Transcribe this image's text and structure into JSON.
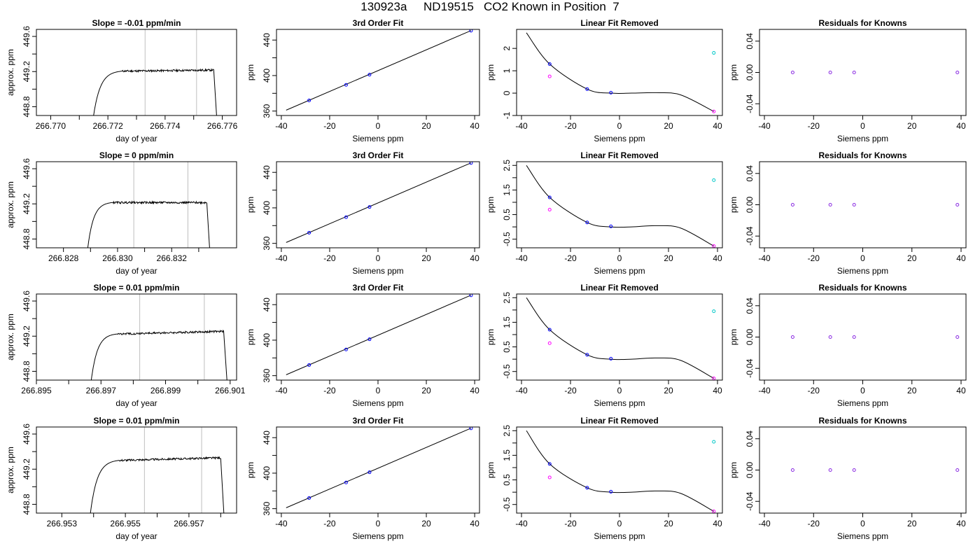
{
  "figure_title": "130923a     ND19515   CO2 Known in Position  7",
  "series_colors": {
    "trace": "#000000",
    "window_line": "#bebebe",
    "known_point": "#0000ff",
    "siemens_point": "#ff00ff",
    "removed_point": "#00c8c8",
    "residual_point": "#8a2be2"
  },
  "chart_data": [
    {
      "type": "line",
      "row": 1,
      "panel": "time-series",
      "title": "Slope =  -0.01  ppm/min",
      "xlabel": "day of year",
      "ylabel": "approx. ppm",
      "xlim": [
        266.7695,
        266.7765
      ],
      "ylim": [
        448.7,
        449.68
      ],
      "xticks": [
        "266.770",
        "266.772",
        "266.774",
        "266.776"
      ],
      "xtick_values": [
        266.77,
        266.772,
        266.774,
        266.776
      ],
      "xticks_minor": [
        266.771,
        266.773,
        266.775
      ],
      "yticks": [
        "448.8",
        "449.2",
        "449.6"
      ],
      "ytick_values": [
        448.8,
        449.2,
        449.6
      ],
      "yticks_minor": [
        449.0,
        449.4
      ],
      "window": [
        266.7733,
        266.7751
      ],
      "trace": {
        "start": 266.7715,
        "rise_end": 266.7725,
        "end": 266.7757,
        "fall_end": 266.7758,
        "baseline": 448.7,
        "plateau": 449.205,
        "drift": 0.012
      }
    },
    {
      "type": "line",
      "row": 1,
      "panel": "fit",
      "title": "3rd Order Fit",
      "xlabel": "Siemens ppm",
      "ylabel": "ppm",
      "xlim": [
        -42,
        42
      ],
      "ylim": [
        355,
        452
      ],
      "xticks": [
        "-40",
        "-20",
        "0",
        "20",
        "40"
      ],
      "xtick_values": [
        -40,
        -20,
        0,
        20,
        40
      ],
      "yticks": [
        "360",
        "400",
        "440"
      ],
      "ytick_values": [
        360,
        400,
        440
      ],
      "yticks_minor": [
        380,
        420
      ],
      "line": {
        "x": [
          -38,
          38.5
        ],
        "y": [
          361,
          450.7
        ]
      },
      "points": [
        {
          "x": -28.5,
          "y": 372
        },
        {
          "x": -13.2,
          "y": 389.5
        },
        {
          "x": -3.5,
          "y": 401
        },
        {
          "x": 38.5,
          "y": 450.5
        }
      ]
    },
    {
      "type": "line",
      "row": 1,
      "panel": "linear-removed",
      "title": "Linear Fit Removed",
      "xlabel": "Siemens ppm",
      "ylabel": "ppm",
      "xlim": [
        -42,
        42
      ],
      "ylim": [
        -1.0,
        2.85
      ],
      "xticks": [
        "-40",
        "-20",
        "0",
        "20",
        "40"
      ],
      "xtick_values": [
        -40,
        -20,
        0,
        20,
        40
      ],
      "yticks": [
        "-1",
        "0",
        "1",
        "2"
      ],
      "ytick_values": [
        -1,
        0,
        1,
        2
      ],
      "curve": {
        "x": [
          -38,
          -28.5,
          -13.2,
          -3.5,
          5,
          15,
          25,
          38.5
        ],
        "y": [
          2.7,
          1.3,
          0.18,
          0.0,
          0.0,
          0.02,
          -0.08,
          -0.82
        ]
      },
      "points": [
        {
          "x": -28.5,
          "y": 1.3,
          "kind": "known"
        },
        {
          "x": -28.5,
          "y": 0.75,
          "kind": "siemens"
        },
        {
          "x": -13.2,
          "y": 0.18,
          "kind": "known"
        },
        {
          "x": -3.5,
          "y": 0.02,
          "kind": "known"
        },
        {
          "x": 38.5,
          "y": 1.8,
          "kind": "removed"
        },
        {
          "x": 38.5,
          "y": -0.82,
          "kind": "siemens"
        }
      ]
    },
    {
      "type": "scatter",
      "row": 1,
      "panel": "residuals",
      "title": "Residuals for Knowns",
      "xlabel": "Siemens ppm",
      "ylabel": "ppm",
      "xlim": [
        -42,
        42
      ],
      "ylim": [
        -0.055,
        0.055
      ],
      "xticks": [
        "-40",
        "-20",
        "0",
        "20",
        "40"
      ],
      "xtick_values": [
        -40,
        -20,
        0,
        20,
        40
      ],
      "yticks": [
        "-0.04",
        "0.00",
        "0.04"
      ],
      "ytick_values": [
        -0.04,
        0.0,
        0.04
      ],
      "points": [
        {
          "x": -28.5,
          "y": 0
        },
        {
          "x": -13.2,
          "y": 0
        },
        {
          "x": -3.5,
          "y": 0
        },
        {
          "x": 38.5,
          "y": 0
        }
      ]
    },
    {
      "type": "line",
      "row": 2,
      "panel": "time-series",
      "title": "Slope =  0  ppm/min",
      "xlabel": "day of year",
      "ylabel": "approx. ppm",
      "xlim": [
        266.827,
        266.8344
      ],
      "ylim": [
        448.7,
        449.68
      ],
      "xticks": [
        "266.828",
        "266.830",
        "266.832"
      ],
      "xtick_values": [
        266.828,
        266.83,
        266.832
      ],
      "xticks_minor": [
        266.829,
        266.831,
        266.833
      ],
      "yticks": [
        "448.8",
        "449.2",
        "449.6"
      ],
      "ytick_values": [
        448.8,
        449.2,
        449.6
      ],
      "yticks_minor": [
        449.0,
        449.4
      ],
      "window": [
        266.8306,
        266.8326
      ],
      "trace": {
        "start": 266.8289,
        "rise_end": 266.8298,
        "end": 266.8333,
        "fall_end": 266.8334,
        "baseline": 448.7,
        "plateau": 449.215,
        "drift": 0.0
      }
    },
    {
      "type": "line",
      "row": 2,
      "panel": "fit",
      "title": "3rd Order Fit",
      "xlabel": "Siemens ppm",
      "ylabel": "ppm",
      "xlim": [
        -42,
        42
      ],
      "ylim": [
        355,
        452
      ],
      "xticks": [
        "-40",
        "-20",
        "0",
        "20",
        "40"
      ],
      "xtick_values": [
        -40,
        -20,
        0,
        20,
        40
      ],
      "yticks": [
        "360",
        "400",
        "440"
      ],
      "ytick_values": [
        360,
        400,
        440
      ],
      "yticks_minor": [
        380,
        420
      ],
      "line": {
        "x": [
          -38,
          38.5
        ],
        "y": [
          361,
          450.7
        ]
      },
      "points": [
        {
          "x": -28.5,
          "y": 372
        },
        {
          "x": -13.2,
          "y": 389.5
        },
        {
          "x": -3.5,
          "y": 401
        },
        {
          "x": 38.5,
          "y": 450.5
        }
      ]
    },
    {
      "type": "line",
      "row": 2,
      "panel": "linear-removed",
      "title": "Linear Fit Removed",
      "xlabel": "Siemens ppm",
      "ylabel": "ppm",
      "xlim": [
        -42,
        42
      ],
      "ylim": [
        -0.85,
        2.65
      ],
      "xticks": [
        "-40",
        "-20",
        "0",
        "20",
        "40"
      ],
      "xtick_values": [
        -40,
        -20,
        0,
        20,
        40
      ],
      "yticks": [
        "-0.5",
        "0.5",
        "1.5",
        "2.5"
      ],
      "ytick_values": [
        -0.5,
        0.5,
        1.5,
        2.5
      ],
      "yticks_minor": [
        0,
        1,
        2
      ],
      "curve": {
        "x": [
          -38,
          -28.5,
          -13.2,
          -3.5,
          5,
          15,
          25,
          38.5
        ],
        "y": [
          2.5,
          1.2,
          0.18,
          0.0,
          0.0,
          0.05,
          -0.05,
          -0.78
        ]
      },
      "points": [
        {
          "x": -28.5,
          "y": 1.2,
          "kind": "known"
        },
        {
          "x": -28.5,
          "y": 0.7,
          "kind": "siemens"
        },
        {
          "x": -13.2,
          "y": 0.18,
          "kind": "known"
        },
        {
          "x": -3.5,
          "y": 0.02,
          "kind": "known"
        },
        {
          "x": 38.5,
          "y": 1.9,
          "kind": "removed"
        },
        {
          "x": 38.5,
          "y": -0.78,
          "kind": "siemens"
        }
      ]
    },
    {
      "type": "scatter",
      "row": 2,
      "panel": "residuals",
      "title": "Residuals for Knowns",
      "xlabel": "Siemens ppm",
      "ylabel": "ppm",
      "xlim": [
        -42,
        42
      ],
      "ylim": [
        -0.055,
        0.055
      ],
      "xticks": [
        "-40",
        "-20",
        "0",
        "20",
        "40"
      ],
      "xtick_values": [
        -40,
        -20,
        0,
        20,
        40
      ],
      "yticks": [
        "-0.04",
        "0.00",
        "0.04"
      ],
      "ytick_values": [
        -0.04,
        0.0,
        0.04
      ],
      "points": [
        {
          "x": -28.5,
          "y": 0
        },
        {
          "x": -13.2,
          "y": 0
        },
        {
          "x": -3.5,
          "y": 0
        },
        {
          "x": 38.5,
          "y": 0
        }
      ]
    },
    {
      "type": "line",
      "row": 3,
      "panel": "time-series",
      "title": "Slope =  0.01  ppm/min",
      "xlabel": "day of year",
      "ylabel": "approx. ppm",
      "xlim": [
        266.895,
        266.9012
      ],
      "ylim": [
        448.7,
        449.68
      ],
      "xticks": [
        "266.895",
        "266.897",
        "266.899",
        "266.901"
      ],
      "xtick_values": [
        266.895,
        266.897,
        266.899,
        266.901
      ],
      "xticks_minor": [
        266.896,
        266.898,
        266.9
      ],
      "yticks": [
        "448.8",
        "449.2",
        "449.6"
      ],
      "ytick_values": [
        448.8,
        449.2,
        449.6
      ],
      "yticks_minor": [
        449.0,
        449.4
      ],
      "window": [
        266.8982,
        266.9002
      ],
      "trace": {
        "start": 266.8967,
        "rise_end": 266.8975,
        "end": 266.9008,
        "fall_end": 266.9009,
        "baseline": 448.7,
        "plateau": 449.225,
        "drift": 0.03
      }
    },
    {
      "type": "line",
      "row": 3,
      "panel": "fit",
      "title": "3rd Order Fit",
      "xlabel": "Siemens ppm",
      "ylabel": "ppm",
      "xlim": [
        -42,
        42
      ],
      "ylim": [
        355,
        452
      ],
      "xticks": [
        "-40",
        "-20",
        "0",
        "20",
        "40"
      ],
      "xtick_values": [
        -40,
        -20,
        0,
        20,
        40
      ],
      "yticks": [
        "360",
        "400",
        "440"
      ],
      "ytick_values": [
        360,
        400,
        440
      ],
      "yticks_minor": [
        380,
        420
      ],
      "line": {
        "x": [
          -38,
          38.5
        ],
        "y": [
          361,
          450.7
        ]
      },
      "points": [
        {
          "x": -28.5,
          "y": 372
        },
        {
          "x": -13.2,
          "y": 389.5
        },
        {
          "x": -3.5,
          "y": 401
        },
        {
          "x": 38.5,
          "y": 450.5
        }
      ]
    },
    {
      "type": "line",
      "row": 3,
      "panel": "linear-removed",
      "title": "Linear Fit Removed",
      "xlabel": "Siemens ppm",
      "ylabel": "ppm",
      "xlim": [
        -42,
        42
      ],
      "ylim": [
        -0.85,
        2.65
      ],
      "xticks": [
        "-40",
        "-20",
        "0",
        "20",
        "40"
      ],
      "xtick_values": [
        -40,
        -20,
        0,
        20,
        40
      ],
      "yticks": [
        "-0.5",
        "0.5",
        "1.5",
        "2.5"
      ],
      "ytick_values": [
        -0.5,
        0.5,
        1.5,
        2.5
      ],
      "yticks_minor": [
        0,
        1,
        2
      ],
      "curve": {
        "x": [
          -38,
          -28.5,
          -13.2,
          -3.5,
          5,
          15,
          25,
          38.5
        ],
        "y": [
          2.5,
          1.2,
          0.18,
          0.0,
          0.0,
          0.05,
          -0.05,
          -0.78
        ]
      },
      "points": [
        {
          "x": -28.5,
          "y": 1.2,
          "kind": "known"
        },
        {
          "x": -28.5,
          "y": 0.65,
          "kind": "siemens"
        },
        {
          "x": -13.2,
          "y": 0.18,
          "kind": "known"
        },
        {
          "x": -3.5,
          "y": 0.02,
          "kind": "known"
        },
        {
          "x": 38.5,
          "y": 1.95,
          "kind": "removed"
        },
        {
          "x": 38.5,
          "y": -0.78,
          "kind": "siemens"
        }
      ]
    },
    {
      "type": "scatter",
      "row": 3,
      "panel": "residuals",
      "title": "Residuals for Knowns",
      "xlabel": "Siemens ppm",
      "ylabel": "ppm",
      "xlim": [
        -42,
        42
      ],
      "ylim": [
        -0.055,
        0.055
      ],
      "xticks": [
        "-40",
        "-20",
        "0",
        "20",
        "40"
      ],
      "xtick_values": [
        -40,
        -20,
        0,
        20,
        40
      ],
      "yticks": [
        "-0.04",
        "0.00",
        "0.04"
      ],
      "ytick_values": [
        -0.04,
        0.0,
        0.04
      ],
      "points": [
        {
          "x": -28.5,
          "y": 0
        },
        {
          "x": -13.2,
          "y": 0
        },
        {
          "x": -3.5,
          "y": 0
        },
        {
          "x": 38.5,
          "y": 0
        }
      ]
    },
    {
      "type": "line",
      "row": 4,
      "panel": "time-series",
      "title": "Slope =  0.01  ppm/min",
      "xlabel": "day of year",
      "ylabel": "approx. ppm",
      "xlim": [
        266.9522,
        266.9585
      ],
      "ylim": [
        448.7,
        449.68
      ],
      "xticks": [
        "266.953",
        "266.955",
        "266.957"
      ],
      "xtick_values": [
        266.953,
        266.955,
        266.957
      ],
      "xticks_minor": [
        266.954,
        266.956,
        266.958
      ],
      "yticks": [
        "448.8",
        "449.2",
        "449.6"
      ],
      "ytick_values": [
        448.8,
        449.2,
        449.6
      ],
      "yticks_minor": [
        449.0,
        449.4
      ],
      "window": [
        266.9556,
        266.9574
      ],
      "trace": {
        "start": 266.9539,
        "rise_end": 266.9548,
        "end": 266.958,
        "fall_end": 266.9581,
        "baseline": 448.7,
        "plateau": 449.3,
        "drift": 0.03
      }
    },
    {
      "type": "line",
      "row": 4,
      "panel": "fit",
      "title": "3rd Order Fit",
      "xlabel": "Siemens ppm",
      "ylabel": "ppm",
      "xlim": [
        -42,
        42
      ],
      "ylim": [
        355,
        452
      ],
      "xticks": [
        "-40",
        "-20",
        "0",
        "20",
        "40"
      ],
      "xtick_values": [
        -40,
        -20,
        0,
        20,
        40
      ],
      "yticks": [
        "360",
        "400",
        "440"
      ],
      "ytick_values": [
        360,
        400,
        440
      ],
      "yticks_minor": [
        380,
        420
      ],
      "line": {
        "x": [
          -38,
          38.5
        ],
        "y": [
          361,
          450.7
        ]
      },
      "points": [
        {
          "x": -28.5,
          "y": 372
        },
        {
          "x": -13.2,
          "y": 389.5
        },
        {
          "x": -3.5,
          "y": 401
        },
        {
          "x": 38.5,
          "y": 450.5
        }
      ]
    },
    {
      "type": "line",
      "row": 4,
      "panel": "linear-removed",
      "title": "Linear Fit Removed",
      "xlabel": "Siemens ppm",
      "ylabel": "ppm",
      "xlim": [
        -42,
        42
      ],
      "ylim": [
        -0.85,
        2.65
      ],
      "xticks": [
        "-40",
        "-20",
        "0",
        "20",
        "40"
      ],
      "xtick_values": [
        -40,
        -20,
        0,
        20,
        40
      ],
      "yticks": [
        "-0.5",
        "0.5",
        "1.5",
        "2.5"
      ],
      "ytick_values": [
        -0.5,
        0.5,
        1.5,
        2.5
      ],
      "yticks_minor": [
        0,
        1,
        2
      ],
      "curve": {
        "x": [
          -38,
          -28.5,
          -13.2,
          -3.5,
          5,
          15,
          25,
          38.5
        ],
        "y": [
          2.5,
          1.15,
          0.18,
          0.0,
          0.0,
          0.05,
          -0.05,
          -0.78
        ]
      },
      "points": [
        {
          "x": -28.5,
          "y": 1.15,
          "kind": "known"
        },
        {
          "x": -28.5,
          "y": 0.6,
          "kind": "siemens"
        },
        {
          "x": -13.2,
          "y": 0.18,
          "kind": "known"
        },
        {
          "x": -3.5,
          "y": 0.02,
          "kind": "known"
        },
        {
          "x": 38.5,
          "y": 2.05,
          "kind": "removed"
        },
        {
          "x": 38.5,
          "y": -0.78,
          "kind": "siemens"
        }
      ]
    },
    {
      "type": "scatter",
      "row": 4,
      "panel": "residuals",
      "title": "Residuals for Knowns",
      "xlabel": "Siemens ppm",
      "ylabel": "ppm",
      "xlim": [
        -42,
        42
      ],
      "ylim": [
        -0.055,
        0.055
      ],
      "xticks": [
        "-40",
        "-20",
        "0",
        "20",
        "40"
      ],
      "xtick_values": [
        -40,
        -20,
        0,
        20,
        40
      ],
      "yticks": [
        "-0.04",
        "0.00",
        "0.04"
      ],
      "ytick_values": [
        -0.04,
        0.0,
        0.04
      ],
      "points": [
        {
          "x": -28.5,
          "y": 0
        },
        {
          "x": -13.2,
          "y": 0
        },
        {
          "x": -3.5,
          "y": 0
        },
        {
          "x": 38.5,
          "y": 0
        }
      ]
    }
  ]
}
